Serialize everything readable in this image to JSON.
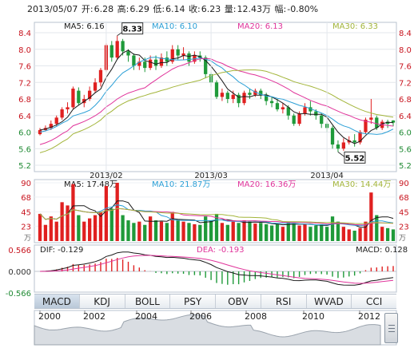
{
  "header": {
    "date": "2013/05/07",
    "open_label": "开:",
    "open": "6.28",
    "high_label": "高:",
    "high": "6.29",
    "low_label": "低:",
    "low": "6.14",
    "close_label": "收:",
    "close": "6.23",
    "vol_label": "量:",
    "vol": "12.43万",
    "chg_label": "幅:",
    "chg": "-0.80%"
  },
  "price_panel": {
    "legend": [
      {
        "label": "MA5: 6.16",
        "color": "#1a1a1a"
      },
      {
        "label": "MA10: 6.10",
        "color": "#2a9fd6"
      },
      {
        "label": "MA20: 6.13",
        "color": "#e0339a"
      },
      {
        "label": "MA30: 6.33",
        "color": "#a3b53a"
      }
    ],
    "y_ticks": [
      "8.4",
      "8.0",
      "7.6",
      "7.2",
      "6.8",
      "6.4",
      "6.0",
      "5.6",
      "5.2"
    ],
    "x_ticks": [
      "2013/02",
      "2013/03",
      "2013/04"
    ],
    "max_callout": "8.33",
    "min_callout": "5.52"
  },
  "volume_panel": {
    "legend": [
      {
        "label": "MA5: 17.48万",
        "color": "#1a1a1a"
      },
      {
        "label": "MA10: 21.87万",
        "color": "#2a9fd6"
      },
      {
        "label": "MA20: 16.36万",
        "color": "#e0339a"
      },
      {
        "label": "MA30: 14.44万",
        "color": "#a3b53a"
      }
    ],
    "y_ticks": [
      "90",
      "68",
      "45",
      "23"
    ],
    "unit": "万"
  },
  "macd_panel": {
    "dif": "DIF: -0.129",
    "dea": "DEA: -0.193",
    "macd": "MACD: 0.128",
    "y_ticks": [
      "0.566",
      "0.000",
      "-0.566"
    ]
  },
  "tabs": [
    "MACD",
    "KDJ",
    "BOLL",
    "PSY",
    "OBV",
    "RSI",
    "WVAD",
    "CCI"
  ],
  "active_tab": "MACD",
  "timeline": {
    "years": [
      "2000",
      "2002",
      "2004",
      "2006",
      "2008",
      "2010",
      "2012"
    ]
  },
  "colors": {
    "up": "#e02020",
    "down": "#1f9a3a",
    "frame": "#b9c3cf"
  },
  "chart_data": {
    "type": "candlestick",
    "title": "",
    "ylim": [
      5.2,
      8.4
    ],
    "candles": [
      [
        5.95,
        6.05,
        5.92,
        6.1
      ],
      [
        6.05,
        6.1,
        6.02,
        6.16
      ],
      [
        6.1,
        6.2,
        6.05,
        6.28
      ],
      [
        6.2,
        6.35,
        6.15,
        6.4
      ],
      [
        6.35,
        6.55,
        6.3,
        6.6
      ],
      [
        6.55,
        6.6,
        6.45,
        6.72
      ],
      [
        6.6,
        7.05,
        6.55,
        7.1
      ],
      [
        7.0,
        6.7,
        6.65,
        7.08
      ],
      [
        6.7,
        6.8,
        6.6,
        6.9
      ],
      [
        6.8,
        7.0,
        6.75,
        7.1
      ],
      [
        7.0,
        7.2,
        6.95,
        7.3
      ],
      [
        7.2,
        7.5,
        7.1,
        7.55
      ],
      [
        7.5,
        8.1,
        7.45,
        8.15
      ],
      [
        8.1,
        7.8,
        7.7,
        8.2
      ],
      [
        7.8,
        8.2,
        7.75,
        8.33
      ],
      [
        8.2,
        7.95,
        7.85,
        8.25
      ],
      [
        7.95,
        7.85,
        7.7,
        8.0
      ],
      [
        7.85,
        7.6,
        7.5,
        7.9
      ],
      [
        7.6,
        7.7,
        7.5,
        7.8
      ],
      [
        7.7,
        7.55,
        7.45,
        7.8
      ],
      [
        7.55,
        7.75,
        7.5,
        7.85
      ],
      [
        7.75,
        7.6,
        7.5,
        7.85
      ],
      [
        7.6,
        7.8,
        7.55,
        7.9
      ],
      [
        7.8,
        7.7,
        7.6,
        7.95
      ],
      [
        7.7,
        8.0,
        7.65,
        8.1
      ],
      [
        8.0,
        7.85,
        7.75,
        8.1
      ],
      [
        7.85,
        7.9,
        7.75,
        8.05
      ],
      [
        7.9,
        7.7,
        7.6,
        7.95
      ],
      [
        7.7,
        7.85,
        7.65,
        7.95
      ],
      [
        7.85,
        7.8,
        7.7,
        7.95
      ],
      [
        7.8,
        7.4,
        7.3,
        7.85
      ],
      [
        7.4,
        7.2,
        7.1,
        7.45
      ],
      [
        7.2,
        6.85,
        6.8,
        7.25
      ],
      [
        6.85,
        6.95,
        6.75,
        7.05
      ],
      [
        6.95,
        6.8,
        6.7,
        7.0
      ],
      [
        6.8,
        6.9,
        6.7,
        7.0
      ],
      [
        6.9,
        6.7,
        6.6,
        6.95
      ],
      [
        6.7,
        6.95,
        6.65,
        7.0
      ],
      [
        6.95,
        6.9,
        6.8,
        7.05
      ],
      [
        6.9,
        7.0,
        6.85,
        7.05
      ],
      [
        7.0,
        6.9,
        6.8,
        7.05
      ],
      [
        6.9,
        6.75,
        6.65,
        6.95
      ],
      [
        6.75,
        6.7,
        6.6,
        6.85
      ],
      [
        6.7,
        6.55,
        6.5,
        6.8
      ],
      [
        6.55,
        6.6,
        6.45,
        6.7
      ],
      [
        6.6,
        6.4,
        6.3,
        6.65
      ],
      [
        6.4,
        6.2,
        6.15,
        6.45
      ],
      [
        6.2,
        6.45,
        6.15,
        6.5
      ],
      [
        6.45,
        6.6,
        6.4,
        6.7
      ],
      [
        6.6,
        6.5,
        6.4,
        6.75
      ],
      [
        6.5,
        6.4,
        6.3,
        6.55
      ],
      [
        6.4,
        6.2,
        6.1,
        6.45
      ],
      [
        6.2,
        6.1,
        6.0,
        6.25
      ],
      [
        6.1,
        5.7,
        5.6,
        6.15
      ],
      [
        5.7,
        5.6,
        5.52,
        5.8
      ],
      [
        5.6,
        5.75,
        5.55,
        5.85
      ],
      [
        5.75,
        5.8,
        5.7,
        5.9
      ],
      [
        5.8,
        5.75,
        5.65,
        5.95
      ],
      [
        5.75,
        6.0,
        5.7,
        6.05
      ],
      [
        6.0,
        6.3,
        5.95,
        6.35
      ],
      [
        6.3,
        6.35,
        6.2,
        6.8
      ],
      [
        6.35,
        6.1,
        6.05,
        6.4
      ],
      [
        6.1,
        6.25,
        6.05,
        6.3
      ],
      [
        6.25,
        6.2,
        6.1,
        6.3
      ],
      [
        6.28,
        6.23,
        6.14,
        6.29
      ]
    ]
  }
}
